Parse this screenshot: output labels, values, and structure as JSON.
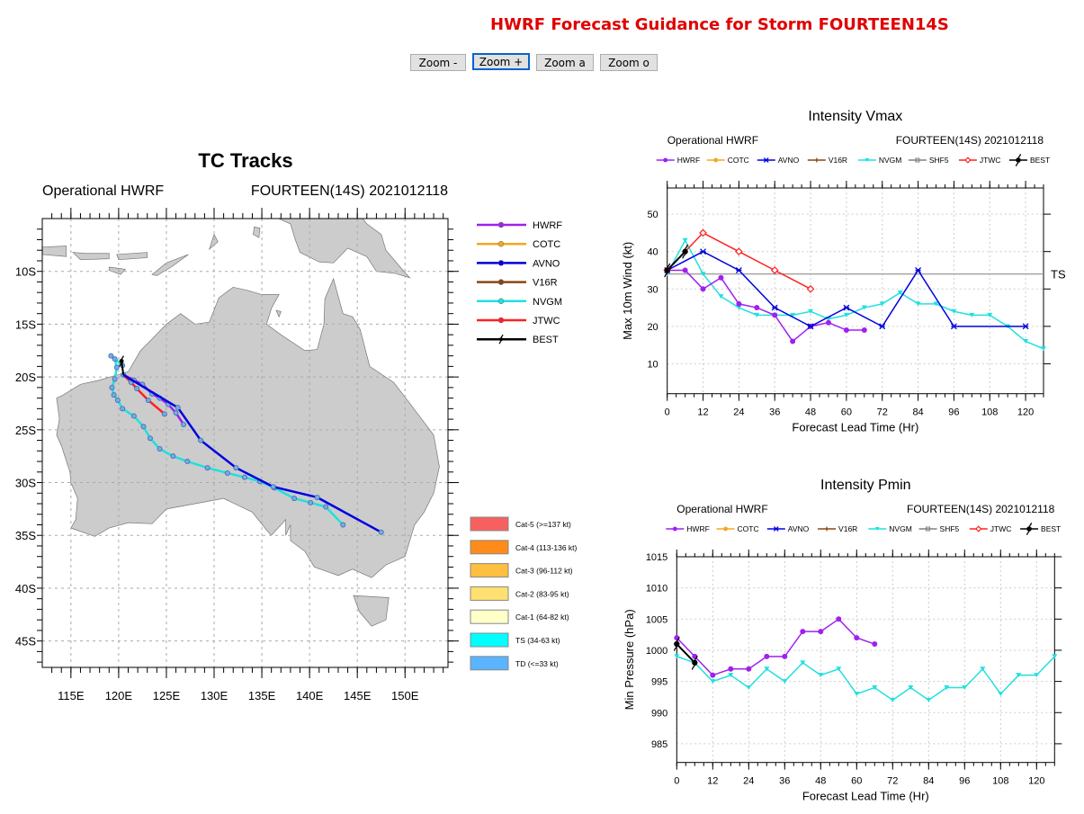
{
  "page": {
    "title": "HWRF Forecast Guidance for Storm FOURTEEN14S",
    "buttons": [
      "Zoom -",
      "Zoom +",
      "Zoom a",
      "Zoom o"
    ]
  },
  "colors": {
    "HWRF": "#a020f0",
    "COTC": "#f5a623",
    "AVNO": "#0000e0",
    "V16R": "#8b4513",
    "NVGM": "#20e0e0",
    "SHF5": "#808080",
    "JTWC": "#ff2020",
    "BEST": "#000000",
    "title": "#e00000",
    "land": "#cccccc"
  },
  "chart_data": [
    {
      "type": "line",
      "title": "TC Tracks",
      "subtitle_left": "Operational HWRF",
      "subtitle_right": "FOURTEEN(14S) 2021012118",
      "xlim": [
        112,
        154.5
      ],
      "ylim": [
        -47.5,
        -5
      ],
      "xticks": [
        {
          "v": 115,
          "l": "115E"
        },
        {
          "v": 120,
          "l": "120E"
        },
        {
          "v": 125,
          "l": "125E"
        },
        {
          "v": 130,
          "l": "130E"
        },
        {
          "v": 135,
          "l": "135E"
        },
        {
          "v": 140,
          "l": "140E"
        },
        {
          "v": 145,
          "l": "145E"
        },
        {
          "v": 150,
          "l": "150E"
        }
      ],
      "yticks": [
        {
          "v": -10,
          "l": "10S"
        },
        {
          "v": -15,
          "l": "15S"
        },
        {
          "v": -20,
          "l": "20S"
        },
        {
          "v": -25,
          "l": "25S"
        },
        {
          "v": -30,
          "l": "30S"
        },
        {
          "v": -35,
          "l": "35S"
        },
        {
          "v": -40,
          "l": "40S"
        },
        {
          "v": -45,
          "l": "45S"
        }
      ],
      "grid": true,
      "legend": [
        "HWRF",
        "COTC",
        "AVNO",
        "V16R",
        "NVGM",
        "JTWC",
        "BEST"
      ],
      "category_legend": [
        "Cat-5 (>=137 kt)",
        "Cat-4 (113-136 kt)",
        "Cat-3 (96-112 kt)",
        "Cat-2 (83-95 kt)",
        "Cat-1 (64-82 kt)",
        "TS (34-63 kt)",
        "TD (<=33 kt)"
      ],
      "category_colors": [
        "#f86060",
        "#ff8c1a",
        "#ffbf40",
        "#ffe070",
        "#ffffc8",
        "#00ffff",
        "#5ab4ff"
      ],
      "series": [
        {
          "name": "NVGM",
          "lon": [
            120.4,
            119.2,
            119.6,
            119.8,
            119.6,
            119.3,
            119.5,
            119.9,
            120.4,
            121.6,
            122.6,
            123.3,
            124.3,
            125.7,
            127.2,
            129.3,
            131.4,
            133.2,
            134.8,
            136.3,
            138.4,
            140.1,
            141.7,
            143.5
          ],
          "lat": [
            -18.9,
            -18.0,
            -18.3,
            -19.1,
            -20.2,
            -21.0,
            -21.7,
            -22.2,
            -23.0,
            -23.7,
            -24.7,
            -25.8,
            -26.8,
            -27.5,
            -28.0,
            -28.6,
            -29.1,
            -29.5,
            -29.9,
            -30.5,
            -31.5,
            -31.9,
            -32.3,
            -34.0
          ]
        },
        {
          "name": "JTWC",
          "lon": [
            120.5,
            121.3,
            121.9,
            123.1,
            124.8
          ],
          "lat": [
            -19.8,
            -20.5,
            -21.1,
            -22.2,
            -23.5
          ]
        },
        {
          "name": "HWRF",
          "lon": [
            120.5,
            121.6,
            122.5,
            123.5,
            124.3,
            125.2,
            126.0,
            126.8
          ],
          "lat": [
            -19.8,
            -20.3,
            -20.7,
            -21.6,
            -22.0,
            -22.6,
            -23.4,
            -24.5
          ]
        },
        {
          "name": "AVNO",
          "lon": [
            120.5,
            126.2,
            128.6,
            132.3,
            136.2,
            140.8,
            147.5
          ],
          "lat": [
            -19.8,
            -22.9,
            -26.0,
            -28.6,
            -30.4,
            -31.4,
            -34.7
          ]
        },
        {
          "name": "BEST",
          "lon": [
            120.3,
            120.5
          ],
          "lat": [
            -18.5,
            -19.8
          ]
        }
      ]
    },
    {
      "type": "line",
      "title": "Intensity Vmax",
      "subtitle_left": "Operational HWRF",
      "subtitle_right": "FOURTEEN(14S) 2021012118",
      "xlabel": "Forecast Lead Time (Hr)",
      "ylabel": "Max 10m Wind (kt)",
      "xlim": [
        0,
        126
      ],
      "ylim": [
        2,
        57
      ],
      "xticks": [
        0,
        12,
        24,
        36,
        48,
        60,
        72,
        84,
        96,
        108,
        120
      ],
      "yticks": [
        10,
        20,
        30,
        40,
        50
      ],
      "grid": true,
      "reference_line": {
        "value": 34,
        "label": "TS"
      },
      "legend": [
        "HWRF",
        "COTC",
        "AVNO",
        "V16R",
        "NVGM",
        "SHF5",
        "JTWC",
        "BEST"
      ],
      "series": [
        {
          "name": "NVGM",
          "x": [
            0,
            6,
            12,
            18,
            24,
            30,
            36,
            42,
            48,
            54,
            60,
            66,
            72,
            78,
            84,
            90,
            96,
            102,
            108,
            114,
            120,
            126
          ],
          "y": [
            34,
            43,
            34,
            28,
            25,
            23,
            23,
            23,
            24,
            22,
            23,
            25,
            26,
            29,
            26,
            26,
            24,
            23,
            23,
            20,
            16,
            14
          ]
        },
        {
          "name": "HWRF",
          "x": [
            0,
            6,
            12,
            18,
            24,
            30,
            36,
            42,
            48,
            54,
            60,
            66
          ],
          "y": [
            35,
            35,
            30,
            33,
            26,
            25,
            23,
            16,
            20,
            21,
            19,
            19
          ]
        },
        {
          "name": "AVNO",
          "x": [
            0,
            12,
            24,
            36,
            48,
            60,
            72,
            84,
            96,
            120
          ],
          "y": [
            35,
            40,
            35,
            25,
            20,
            25,
            20,
            35,
            20,
            20
          ]
        },
        {
          "name": "JTWC",
          "x": [
            0,
            12,
            24,
            36,
            48
          ],
          "y": [
            35,
            45,
            40,
            35,
            30
          ]
        },
        {
          "name": "BEST",
          "x": [
            0,
            6
          ],
          "y": [
            35,
            40
          ]
        }
      ]
    },
    {
      "type": "line",
      "title": "Intensity Pmin",
      "subtitle_left": "Operational HWRF",
      "subtitle_right": "FOURTEEN(14S) 2021012118",
      "xlabel": "Forecast Lead Time (Hr)",
      "ylabel": "Min Pressure (hPa)",
      "xlim": [
        0,
        126
      ],
      "ylim": [
        982,
        1015
      ],
      "xticks": [
        0,
        12,
        24,
        36,
        48,
        60,
        72,
        84,
        96,
        108,
        120
      ],
      "yticks": [
        985,
        990,
        995,
        1000,
        1005,
        1010,
        1015
      ],
      "grid": true,
      "legend": [
        "HWRF",
        "COTC",
        "AVNO",
        "V16R",
        "NVGM",
        "SHF5",
        "JTWC",
        "BEST"
      ],
      "series": [
        {
          "name": "NVGM",
          "x": [
            0,
            6,
            12,
            18,
            24,
            30,
            36,
            42,
            48,
            54,
            60,
            66,
            72,
            78,
            84,
            90,
            96,
            102,
            108,
            114,
            120,
            126
          ],
          "y": [
            999,
            998,
            995,
            996,
            994,
            997,
            995,
            998,
            996,
            997,
            993,
            994,
            992,
            994,
            992,
            994,
            994,
            997,
            993,
            996,
            996,
            999
          ]
        },
        {
          "name": "HWRF",
          "x": [
            0,
            6,
            12,
            18,
            24,
            30,
            36,
            42,
            48,
            54,
            60,
            66
          ],
          "y": [
            1002,
            999,
            996,
            997,
            997,
            999,
            999,
            1003,
            1003,
            1005,
            1002,
            1001
          ]
        },
        {
          "name": "BEST",
          "x": [
            0,
            6
          ],
          "y": [
            1001,
            998
          ]
        }
      ]
    }
  ]
}
